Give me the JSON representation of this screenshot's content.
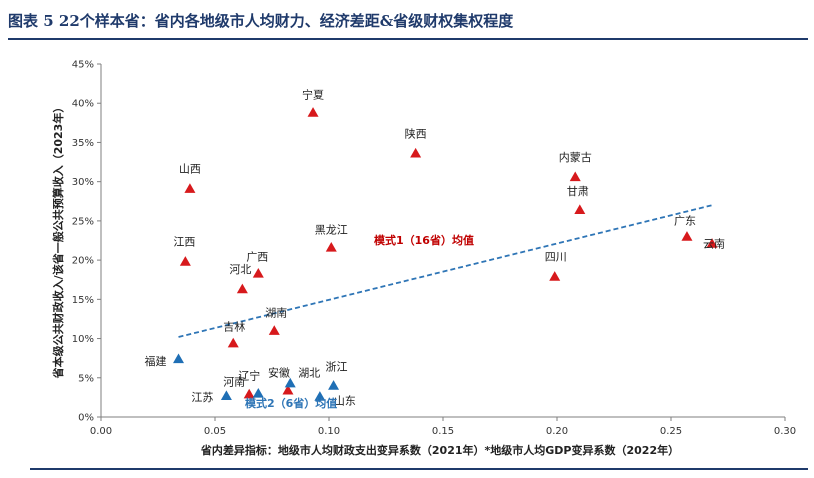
{
  "figure": {
    "title": "图表 5   22个样本省：省内各地级市人均财力、经济差距&省级财权集权程度"
  },
  "chart_data": {
    "type": "scatter",
    "xlabel": "省内差异指标：地级市人均财政支出变异系数（2021年）*地级市人均GDP变异系数（2022年）",
    "ylabel": "省本级公共财政收入/该省一般公共预算收入（2023年）",
    "xlim": [
      0.0,
      0.3
    ],
    "ylim": [
      0.0,
      0.45
    ],
    "x_ticks": [
      "0.00",
      "0.05",
      "0.10",
      "0.15",
      "0.20",
      "0.25",
      "0.30"
    ],
    "y_ticks": [
      "0%",
      "5%",
      "10%",
      "15%",
      "20%",
      "25%",
      "30%",
      "35%",
      "40%",
      "45%"
    ],
    "grid": false,
    "marker": "triangle",
    "colors": {
      "mode1": "#d7191c",
      "mode2": "#1f6fb5",
      "trend": "#2e75b6"
    },
    "series": [
      {
        "name": "模式1（16省）",
        "points": [
          {
            "label": "宁夏",
            "x": 0.093,
            "y": 0.388
          },
          {
            "label": "陕西",
            "x": 0.138,
            "y": 0.336
          },
          {
            "label": "内蒙古",
            "x": 0.208,
            "y": 0.306
          },
          {
            "label": "甘肃",
            "x": 0.21,
            "y": 0.264
          },
          {
            "label": "山西",
            "x": 0.039,
            "y": 0.291
          },
          {
            "label": "黑龙江",
            "x": 0.101,
            "y": 0.216
          },
          {
            "label": "江西",
            "x": 0.037,
            "y": 0.198
          },
          {
            "label": "广西",
            "x": 0.069,
            "y": 0.183
          },
          {
            "label": "河北",
            "x": 0.062,
            "y": 0.163
          },
          {
            "label": "广东",
            "x": 0.257,
            "y": 0.23
          },
          {
            "label": "云南",
            "x": 0.268,
            "y": 0.221
          },
          {
            "label": "四川",
            "x": 0.199,
            "y": 0.179
          },
          {
            "label": "湖南",
            "x": 0.076,
            "y": 0.11
          },
          {
            "label": "吉林",
            "x": 0.058,
            "y": 0.094
          },
          {
            "label": "河南",
            "x": 0.065,
            "y": 0.029
          },
          {
            "label": "安徽",
            "x": 0.082,
            "y": 0.034
          }
        ]
      },
      {
        "name": "模式2（6省）",
        "points": [
          {
            "label": "福建",
            "x": 0.034,
            "y": 0.074
          },
          {
            "label": "江苏",
            "x": 0.055,
            "y": 0.027
          },
          {
            "label": "辽宁",
            "x": 0.069,
            "y": 0.03
          },
          {
            "label": "湖北",
            "x": 0.083,
            "y": 0.043
          },
          {
            "label": "浙江",
            "x": 0.102,
            "y": 0.04
          },
          {
            "label": "山东",
            "x": 0.096,
            "y": 0.026
          }
        ]
      }
    ],
    "annotations": [
      {
        "text": "模式1（16省）均值",
        "series": "mode1"
      },
      {
        "text": "模式2（6省）均值",
        "series": "mode2"
      }
    ],
    "trendline": {
      "x1": 0.034,
      "y1": 0.102,
      "x2": 0.268,
      "y2": 0.27
    }
  }
}
